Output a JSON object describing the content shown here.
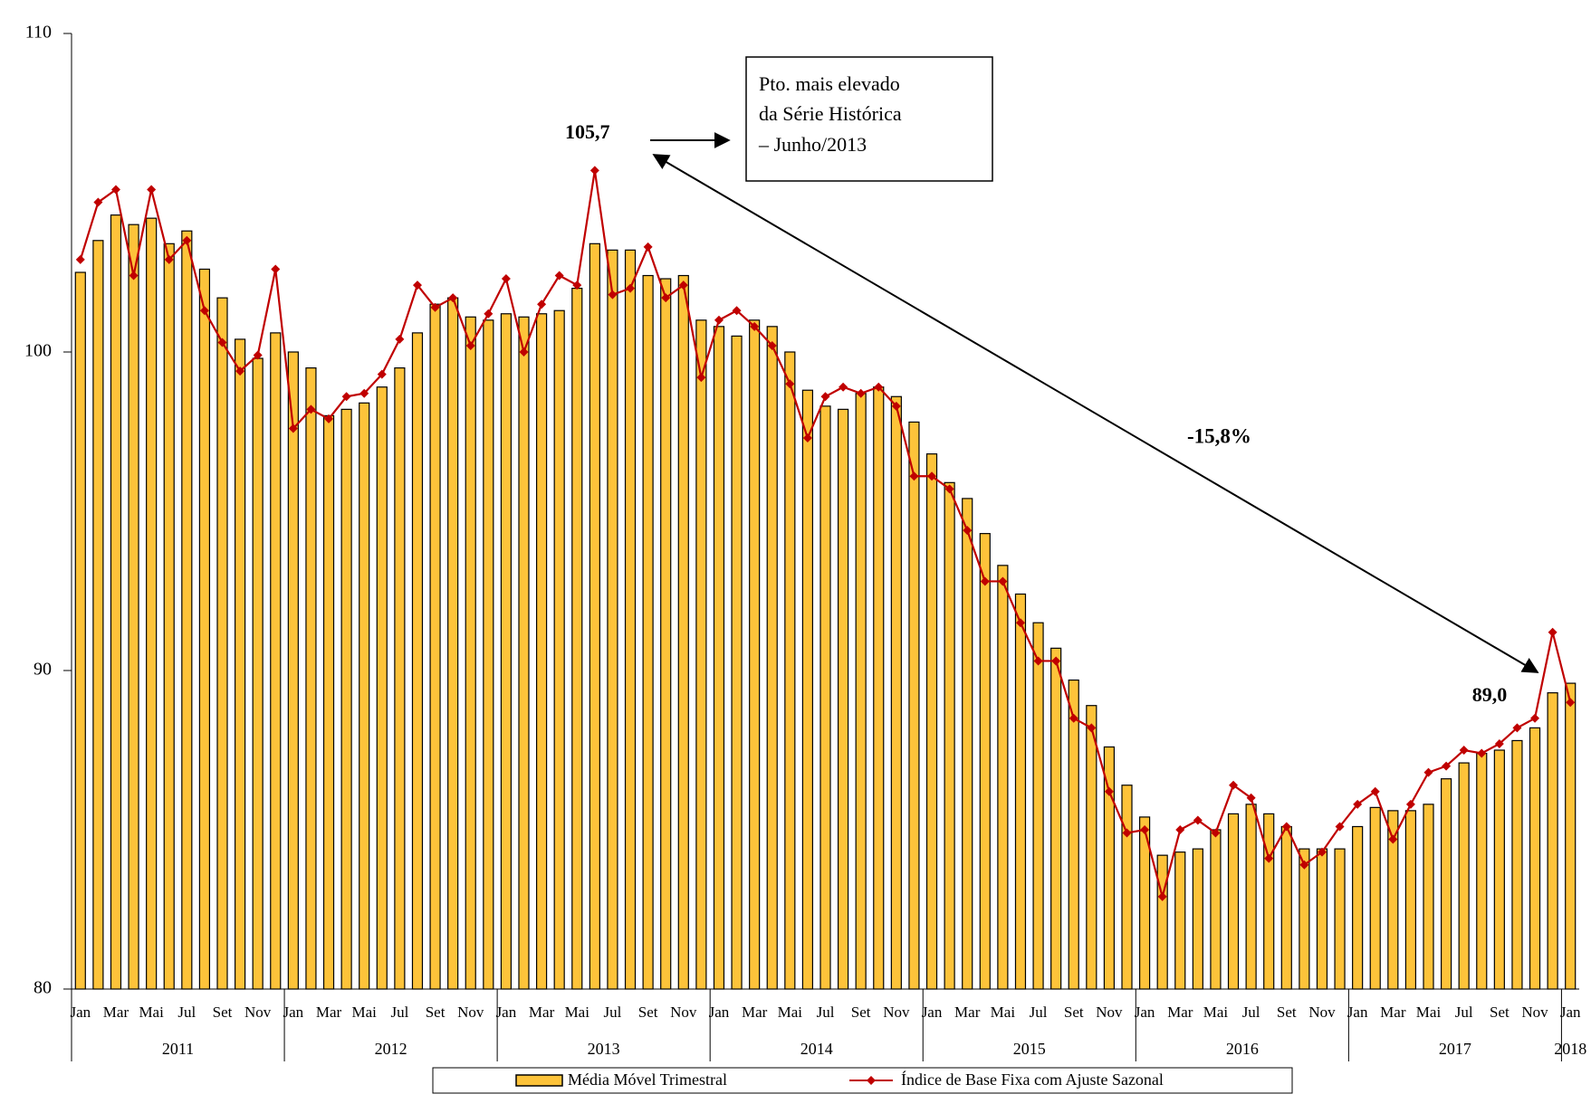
{
  "chart_data": {
    "type": "bar-line",
    "categories": [
      "Jan",
      null,
      "Mar",
      null,
      "Mai",
      null,
      "Jul",
      null,
      "Set",
      null,
      "Nov",
      null,
      "Jan",
      null,
      "Mar",
      null,
      "Mai",
      null,
      "Jul",
      null,
      "Set",
      null,
      "Nov",
      null,
      "Jan",
      null,
      "Mar",
      null,
      "Mai",
      null,
      "Jul",
      null,
      "Set",
      null,
      "Nov",
      null,
      "Jan",
      null,
      "Mar",
      null,
      "Mai",
      null,
      "Jul",
      null,
      "Set",
      null,
      "Nov",
      null,
      "Jan",
      null,
      "Mar",
      null,
      "Mai",
      null,
      "Jul",
      null,
      "Set",
      null,
      "Nov",
      null,
      "Jan",
      null,
      "Mar",
      null,
      "Mai",
      null,
      "Jul",
      null,
      "Set",
      null,
      "Nov",
      null,
      "Jan",
      null,
      "Mar",
      null,
      "Mai",
      null,
      "Jul",
      null,
      "Set",
      null,
      "Nov",
      null,
      "Jan"
    ],
    "years": [
      "2011",
      "2012",
      "2013",
      "2014",
      "2015",
      "2016",
      "2017",
      "2018"
    ],
    "series": [
      {
        "name": "Média Móvel Trimestral",
        "kind": "bar",
        "color": "#fdc33a",
        "values": [
          102.5,
          103.5,
          104.3,
          104.0,
          104.2,
          103.4,
          103.8,
          102.6,
          101.7,
          100.4,
          99.8,
          100.6,
          100.0,
          99.5,
          98.0,
          98.2,
          98.4,
          98.9,
          99.5,
          100.6,
          101.5,
          101.7,
          101.1,
          101.0,
          101.2,
          101.1,
          101.2,
          101.3,
          102.0,
          103.4,
          103.2,
          103.2,
          102.4,
          102.3,
          102.4,
          101.0,
          100.8,
          100.5,
          101.0,
          100.8,
          100.0,
          98.8,
          98.3,
          98.2,
          98.7,
          98.9,
          98.6,
          97.8,
          96.8,
          95.9,
          95.4,
          94.3,
          93.3,
          92.4,
          91.5,
          90.7,
          89.7,
          88.9,
          87.6,
          86.4,
          85.4,
          84.2,
          84.3,
          84.4,
          85.0,
          85.5,
          85.8,
          85.5,
          85.1,
          84.4,
          84.4,
          84.4,
          85.1,
          85.7,
          85.6,
          85.6,
          85.8,
          86.6,
          87.1,
          87.4,
          87.5,
          87.8,
          88.2,
          89.3,
          89.6
        ]
      },
      {
        "name": "Índice de Base Fixa com Ajuste Sazonal",
        "kind": "line",
        "color": "#c00000",
        "values": [
          102.9,
          104.7,
          105.1,
          102.4,
          105.1,
          102.9,
          103.5,
          101.3,
          100.3,
          99.4,
          99.9,
          102.6,
          97.6,
          98.2,
          97.9,
          98.6,
          98.7,
          99.3,
          100.4,
          102.1,
          101.4,
          101.7,
          100.2,
          101.2,
          102.3,
          100.0,
          101.5,
          102.4,
          102.1,
          105.7,
          101.8,
          102.0,
          103.3,
          101.7,
          102.1,
          99.2,
          101.0,
          101.3,
          100.8,
          100.2,
          99.0,
          97.3,
          98.6,
          98.9,
          98.7,
          98.9,
          98.3,
          96.1,
          96.1,
          95.7,
          94.4,
          92.8,
          92.8,
          91.5,
          90.3,
          90.3,
          88.5,
          88.2,
          86.2,
          84.9,
          85.0,
          82.9,
          85.0,
          85.3,
          84.9,
          86.4,
          86.0,
          84.1,
          85.1,
          83.9,
          84.3,
          85.1,
          85.8,
          86.2,
          84.7,
          85.8,
          86.8,
          87.0,
          87.5,
          87.4,
          87.7,
          88.2,
          88.5,
          91.2,
          89.0
        ]
      }
    ],
    "ylim": [
      80,
      110
    ],
    "yticks": [
      80,
      90,
      100,
      110
    ],
    "annotations": {
      "box": [
        "Pto. mais elevado",
        "da Série Histórica",
        "– Junho/2013"
      ],
      "peak": "105,7",
      "last": "89,0",
      "change": "-15,8%"
    }
  }
}
